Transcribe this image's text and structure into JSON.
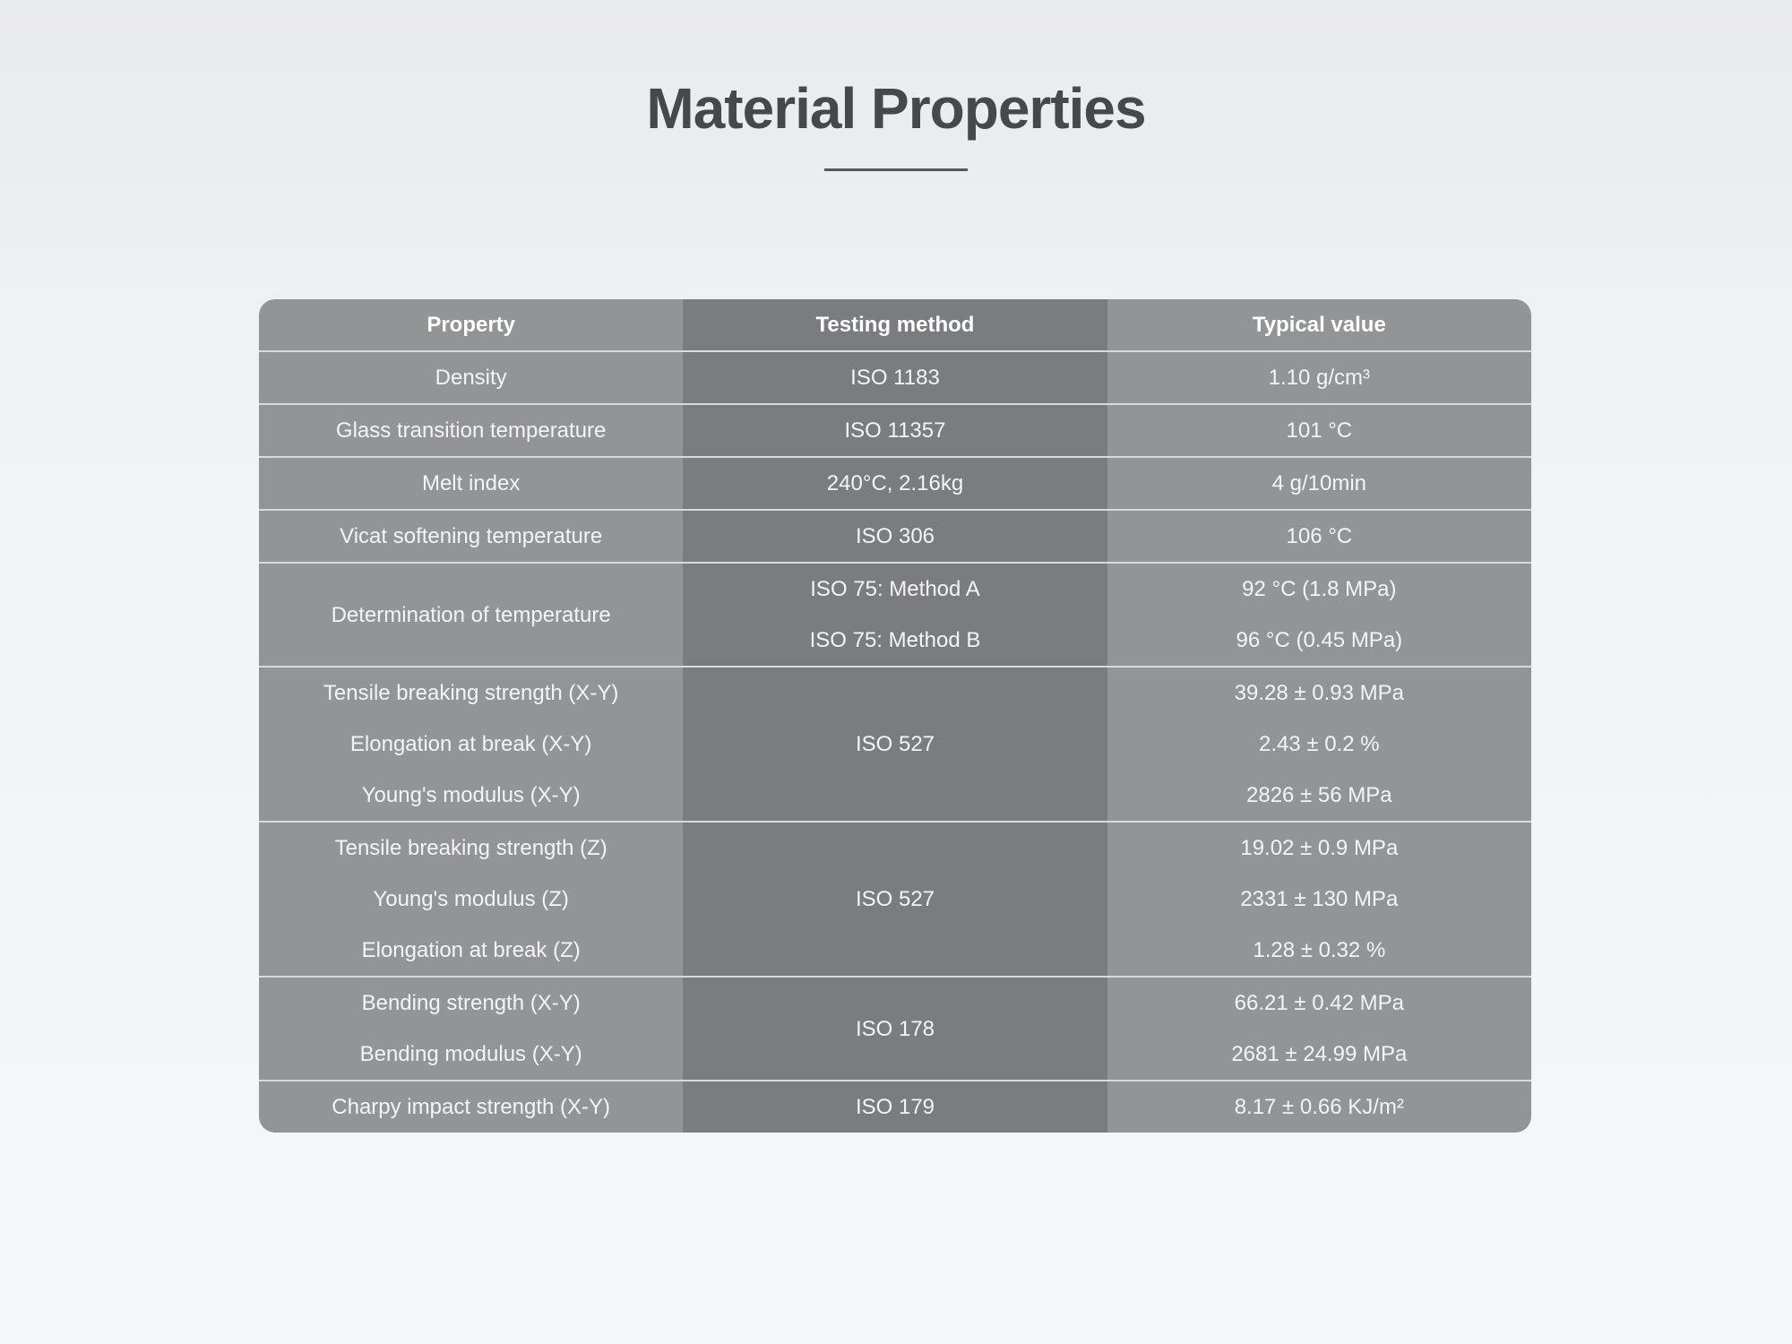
{
  "title": "Material Properties",
  "table": {
    "headers": [
      "Property",
      "Testing method",
      "Typical value"
    ],
    "groups": [
      {
        "properties": [
          "Density"
        ],
        "methods": [
          "ISO 1183"
        ],
        "values": [
          "1.10 g/cm³"
        ]
      },
      {
        "properties": [
          "Glass transition temperature"
        ],
        "methods": [
          "ISO 11357"
        ],
        "values": [
          "101 °C"
        ]
      },
      {
        "properties": [
          "Melt index"
        ],
        "methods": [
          "240°C, 2.16kg"
        ],
        "values": [
          "4 g/10min"
        ]
      },
      {
        "properties": [
          "Vicat softening temperature"
        ],
        "methods": [
          "ISO 306"
        ],
        "values": [
          "106 °C"
        ]
      },
      {
        "properties": [
          "Determination of temperature"
        ],
        "methods": [
          "ISO 75: Method A",
          "ISO 75: Method B"
        ],
        "values": [
          "92 °C (1.8 MPa)",
          "96 °C (0.45 MPa)"
        ]
      },
      {
        "properties": [
          "Tensile breaking strength (X-Y)",
          "Elongation at break (X-Y)",
          "Young's modulus (X-Y)"
        ],
        "methods": [
          "ISO 527"
        ],
        "values": [
          "39.28 ± 0.93 MPa",
          "2.43 ± 0.2 %",
          "2826 ± 56 MPa"
        ]
      },
      {
        "properties": [
          "Tensile breaking strength (Z)",
          "Young's modulus (Z)",
          "Elongation at break (Z)"
        ],
        "methods": [
          "ISO 527"
        ],
        "values": [
          "19.02 ± 0.9 MPa",
          "2331 ± 130 MPa",
          "1.28 ± 0.32 %"
        ]
      },
      {
        "properties": [
          "Bending strength (X-Y)",
          "Bending modulus (X-Y)"
        ],
        "methods": [
          "ISO 178"
        ],
        "values": [
          "66.21 ± 0.42 MPa",
          "2681 ± 24.99 MPa"
        ]
      },
      {
        "properties": [
          "Charpy impact strength (X-Y)"
        ],
        "methods": [
          "ISO 179"
        ],
        "values": [
          "8.17 ± 0.66 KJ/m²"
        ]
      }
    ]
  },
  "colors": {
    "title": "#474849",
    "column_light": "#939496",
    "column_dark": "#7b7c80",
    "text": "#f4f4f5"
  }
}
